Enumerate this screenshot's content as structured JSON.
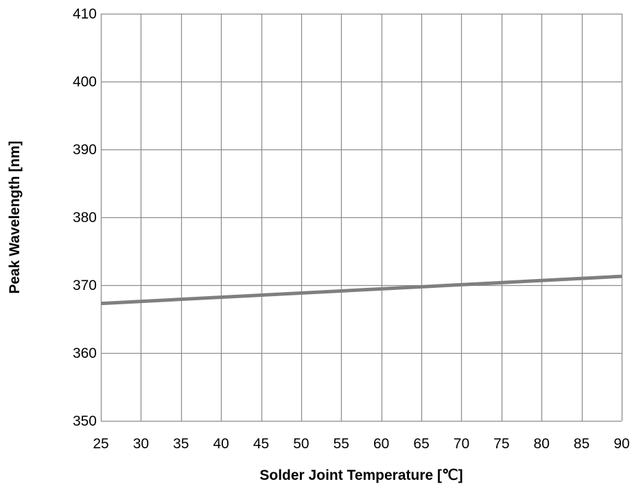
{
  "chart_data": {
    "type": "line",
    "xlabel": "Solder Joint Temperature [℃]",
    "ylabel": "Peak Wavelength [nm]",
    "xlim": [
      25,
      90
    ],
    "ylim": [
      350,
      410
    ],
    "x_ticks": [
      25,
      30,
      35,
      40,
      45,
      50,
      55,
      60,
      65,
      70,
      75,
      80,
      85,
      90
    ],
    "y_ticks": [
      350,
      360,
      370,
      380,
      390,
      400,
      410
    ],
    "grid": true,
    "series": [
      {
        "color": "#7f7f7f",
        "x": [
          25,
          90
        ],
        "y": [
          367.3,
          371.3
        ]
      }
    ]
  }
}
